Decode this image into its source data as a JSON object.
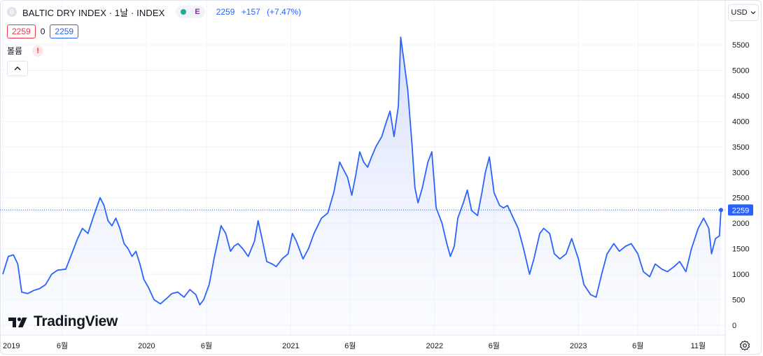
{
  "header": {
    "symbol_badge": "B",
    "title": "BALTIC DRY INDEX · 1날 · INDEX",
    "exchange_badge": "E",
    "last": "2259",
    "change": "+157",
    "change_pct": "(+7.47%)"
  },
  "ohlc": {
    "sell": "2259",
    "spread": "0",
    "buy": "2259"
  },
  "volume": {
    "label": "볼륨",
    "warning": "!"
  },
  "currency": {
    "label": "USD"
  },
  "logo": {
    "text": "TradingView"
  },
  "colors": {
    "line": "#2962ff",
    "fill_top": "#c7d3fb",
    "last_price": "#2962ff",
    "grid": "#f0f3fa"
  },
  "price_tag": "2259",
  "chart_data": {
    "type": "area",
    "series": [
      {
        "values": [
          [
            "2019-01-01",
            1000
          ],
          [
            "2019-01-15",
            1350
          ],
          [
            "2019-01-28",
            1380
          ],
          [
            "2019-02-08",
            1200
          ],
          [
            "2019-02-18",
            650
          ],
          [
            "2019-03-05",
            620
          ],
          [
            "2019-03-20",
            680
          ],
          [
            "2019-04-05",
            720
          ],
          [
            "2019-04-20",
            800
          ],
          [
            "2019-05-05",
            1000
          ],
          [
            "2019-05-20",
            1080
          ],
          [
            "2019-06-10",
            1100
          ],
          [
            "2019-06-25",
            1400
          ],
          [
            "2019-07-10",
            1700
          ],
          [
            "2019-07-22",
            1900
          ],
          [
            "2019-08-05",
            1800
          ],
          [
            "2019-08-20",
            2150
          ],
          [
            "2019-09-05",
            2500
          ],
          [
            "2019-09-15",
            2350
          ],
          [
            "2019-09-25",
            2050
          ],
          [
            "2019-10-05",
            1950
          ],
          [
            "2019-10-15",
            2100
          ],
          [
            "2019-10-25",
            1900
          ],
          [
            "2019-11-05",
            1600
          ],
          [
            "2019-11-15",
            1500
          ],
          [
            "2019-11-25",
            1350
          ],
          [
            "2019-12-05",
            1450
          ],
          [
            "2019-12-15",
            1200
          ],
          [
            "2019-12-25",
            900
          ],
          [
            "2020-01-05",
            750
          ],
          [
            "2020-01-20",
            500
          ],
          [
            "2020-02-05",
            420
          ],
          [
            "2020-02-20",
            520
          ],
          [
            "2020-03-05",
            620
          ],
          [
            "2020-03-20",
            650
          ],
          [
            "2020-04-05",
            550
          ],
          [
            "2020-04-20",
            700
          ],
          [
            "2020-05-05",
            600
          ],
          [
            "2020-05-15",
            400
          ],
          [
            "2020-05-25",
            500
          ],
          [
            "2020-06-08",
            800
          ],
          [
            "2020-06-20",
            1300
          ],
          [
            "2020-07-01",
            1700
          ],
          [
            "2020-07-08",
            1950
          ],
          [
            "2020-07-20",
            1800
          ],
          [
            "2020-08-01",
            1450
          ],
          [
            "2020-08-10",
            1550
          ],
          [
            "2020-08-20",
            1600
          ],
          [
            "2020-09-01",
            1500
          ],
          [
            "2020-09-15",
            1350
          ],
          [
            "2020-10-01",
            1650
          ],
          [
            "2020-10-10",
            2050
          ],
          [
            "2020-10-20",
            1700
          ],
          [
            "2020-11-01",
            1250
          ],
          [
            "2020-11-15",
            1200
          ],
          [
            "2020-11-25",
            1150
          ],
          [
            "2020-12-10",
            1300
          ],
          [
            "2020-12-25",
            1400
          ],
          [
            "2021-01-05",
            1800
          ],
          [
            "2021-01-15",
            1650
          ],
          [
            "2021-02-01",
            1300
          ],
          [
            "2021-02-15",
            1500
          ],
          [
            "2021-03-01",
            1800
          ],
          [
            "2021-03-20",
            2100
          ],
          [
            "2021-04-05",
            2200
          ],
          [
            "2021-04-20",
            2600
          ],
          [
            "2021-05-05",
            3200
          ],
          [
            "2021-05-15",
            3050
          ],
          [
            "2021-05-25",
            2900
          ],
          [
            "2021-06-05",
            2550
          ],
          [
            "2021-06-15",
            2950
          ],
          [
            "2021-06-25",
            3400
          ],
          [
            "2021-07-05",
            3200
          ],
          [
            "2021-07-15",
            3100
          ],
          [
            "2021-07-25",
            3300
          ],
          [
            "2021-08-05",
            3500
          ],
          [
            "2021-08-20",
            3700
          ],
          [
            "2021-09-01",
            4000
          ],
          [
            "2021-09-10",
            4200
          ],
          [
            "2021-09-20",
            3700
          ],
          [
            "2021-10-01",
            4300
          ],
          [
            "2021-10-07",
            5650
          ],
          [
            "2021-10-15",
            5200
          ],
          [
            "2021-10-25",
            4600
          ],
          [
            "2021-11-05",
            3500
          ],
          [
            "2021-11-12",
            2700
          ],
          [
            "2021-11-20",
            2400
          ],
          [
            "2021-12-01",
            2700
          ],
          [
            "2021-12-15",
            3200
          ],
          [
            "2021-12-25",
            3400
          ],
          [
            "2022-01-05",
            2300
          ],
          [
            "2022-01-20",
            2000
          ],
          [
            "2022-02-01",
            1600
          ],
          [
            "2022-02-10",
            1350
          ],
          [
            "2022-02-20",
            1550
          ],
          [
            "2022-03-01",
            2100
          ],
          [
            "2022-03-15",
            2400
          ],
          [
            "2022-03-25",
            2650
          ],
          [
            "2022-04-05",
            2250
          ],
          [
            "2022-04-20",
            2150
          ],
          [
            "2022-05-01",
            2600
          ],
          [
            "2022-05-10",
            3000
          ],
          [
            "2022-05-20",
            3300
          ],
          [
            "2022-06-01",
            2600
          ],
          [
            "2022-06-15",
            2350
          ],
          [
            "2022-06-25",
            2300
          ],
          [
            "2022-07-05",
            2350
          ],
          [
            "2022-07-20",
            2100
          ],
          [
            "2022-08-01",
            1900
          ],
          [
            "2022-08-15",
            1500
          ],
          [
            "2022-08-30",
            1000
          ],
          [
            "2022-09-10",
            1300
          ],
          [
            "2022-09-25",
            1800
          ],
          [
            "2022-10-05",
            1900
          ],
          [
            "2022-10-20",
            1800
          ],
          [
            "2022-11-01",
            1400
          ],
          [
            "2022-11-15",
            1300
          ],
          [
            "2022-12-01",
            1400
          ],
          [
            "2022-12-15",
            1700
          ],
          [
            "2023-01-01",
            1300
          ],
          [
            "2023-01-15",
            800
          ],
          [
            "2023-02-01",
            600
          ],
          [
            "2023-02-15",
            550
          ],
          [
            "2023-03-01",
            1000
          ],
          [
            "2023-03-15",
            1400
          ],
          [
            "2023-04-01",
            1600
          ],
          [
            "2023-04-15",
            1450
          ],
          [
            "2023-05-01",
            1550
          ],
          [
            "2023-05-15",
            1600
          ],
          [
            "2023-06-01",
            1400
          ],
          [
            "2023-06-15",
            1050
          ],
          [
            "2023-07-01",
            950
          ],
          [
            "2023-07-15",
            1200
          ],
          [
            "2023-08-01",
            1100
          ],
          [
            "2023-08-15",
            1050
          ],
          [
            "2023-09-01",
            1150
          ],
          [
            "2023-09-15",
            1250
          ],
          [
            "2023-10-01",
            1050
          ],
          [
            "2023-10-15",
            1500
          ],
          [
            "2023-11-01",
            1900
          ],
          [
            "2023-11-15",
            2100
          ],
          [
            "2023-11-28",
            1900
          ],
          [
            "2023-12-05",
            1400
          ],
          [
            "2023-12-15",
            1700
          ],
          [
            "2023-12-25",
            1750
          ],
          [
            "2023-12-29",
            2259
          ]
        ]
      }
    ],
    "y_ticks": [
      "0",
      "500",
      "1000",
      "1500",
      "2000",
      "2500",
      "3000",
      "3500",
      "4000",
      "4500",
      "5000",
      "5500"
    ],
    "ylim": [
      0,
      5800
    ],
    "x_ticks": [
      {
        "label": "2019",
        "date": "2019-01-01"
      },
      {
        "label": "6월",
        "date": "2019-06-01"
      },
      {
        "label": "2020",
        "date": "2020-01-01"
      },
      {
        "label": "6월",
        "date": "2020-06-01"
      },
      {
        "label": "2021",
        "date": "2021-01-01"
      },
      {
        "label": "6월",
        "date": "2021-06-01"
      },
      {
        "label": "2022",
        "date": "2022-01-01"
      },
      {
        "label": "6월",
        "date": "2022-06-01"
      },
      {
        "label": "2023",
        "date": "2023-01-01"
      },
      {
        "label": "6월",
        "date": "2023-06-01"
      },
      {
        "label": "11월",
        "date": "2023-11-01"
      }
    ],
    "last_value": 2259,
    "grid": true
  }
}
